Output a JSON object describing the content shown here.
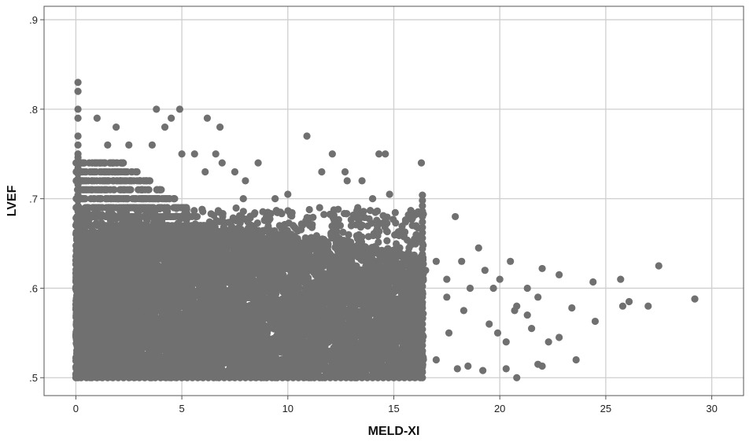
{
  "chart_data": {
    "type": "scatter",
    "title": "",
    "xlabel": "MELD-XI",
    "ylabel": "LVEF",
    "xlim": [
      -1.5,
      31.5
    ],
    "ylim": [
      0.48,
      0.915
    ],
    "x_ticks": [
      0,
      5,
      10,
      15,
      20,
      25,
      30
    ],
    "x_tick_labels": [
      "0",
      "5",
      "10",
      "15",
      "20",
      "25",
      "30"
    ],
    "y_ticks": [
      0.5,
      0.6,
      0.7,
      0.8,
      0.9
    ],
    "y_tick_labels": [
      ".5",
      ".6",
      ".7",
      ".8",
      ".9"
    ],
    "grid": true,
    "legend": "none",
    "marker_color": "#707070",
    "series": [
      {
        "dense_band": {
          "description_of_range": "dense cloud of points from x 0 to 16.4, y 0.50 to ~0.66",
          "x_range": [
            0,
            16.4
          ],
          "y_range": [
            0.5,
            0.665
          ]
        },
        "points": [
          [
            0.1,
            0.83
          ],
          [
            0.1,
            0.82
          ],
          [
            0.1,
            0.8
          ],
          [
            0.1,
            0.79
          ],
          [
            0.1,
            0.77
          ],
          [
            0.1,
            0.76
          ],
          [
            0.1,
            0.75
          ],
          [
            1.0,
            0.79
          ],
          [
            1.9,
            0.78
          ],
          [
            3.8,
            0.8
          ],
          [
            4.9,
            0.8
          ],
          [
            4.5,
            0.79
          ],
          [
            4.2,
            0.78
          ],
          [
            6.2,
            0.79
          ],
          [
            6.8,
            0.78
          ],
          [
            1.5,
            0.76
          ],
          [
            2.5,
            0.76
          ],
          [
            3.6,
            0.76
          ],
          [
            5.0,
            0.75
          ],
          [
            5.6,
            0.75
          ],
          [
            6.6,
            0.75
          ],
          [
            6.1,
            0.73
          ],
          [
            6.9,
            0.74
          ],
          [
            7.5,
            0.73
          ],
          [
            8.0,
            0.72
          ],
          [
            8.6,
            0.74
          ],
          [
            7.9,
            0.7
          ],
          [
            9.4,
            0.7
          ],
          [
            10.0,
            0.705
          ],
          [
            10.9,
            0.77
          ],
          [
            11.6,
            0.73
          ],
          [
            12.1,
            0.75
          ],
          [
            12.7,
            0.73
          ],
          [
            13.5,
            0.72
          ],
          [
            14.0,
            0.7
          ],
          [
            14.3,
            0.75
          ],
          [
            14.6,
            0.75
          ],
          [
            14.8,
            0.705
          ],
          [
            16.3,
            0.74
          ],
          [
            12.8,
            0.72
          ],
          [
            11.5,
            0.69
          ],
          [
            13.3,
            0.69
          ],
          [
            16.5,
            0.62
          ],
          [
            17.0,
            0.63
          ],
          [
            17.5,
            0.61
          ],
          [
            17.9,
            0.68
          ],
          [
            18.2,
            0.63
          ],
          [
            18.6,
            0.6
          ],
          [
            19.0,
            0.645
          ],
          [
            19.3,
            0.62
          ],
          [
            19.7,
            0.6
          ],
          [
            20.0,
            0.61
          ],
          [
            20.5,
            0.63
          ],
          [
            20.8,
            0.58
          ],
          [
            21.3,
            0.6
          ],
          [
            21.8,
            0.59
          ],
          [
            22.0,
            0.622
          ],
          [
            22.8,
            0.615
          ],
          [
            23.4,
            0.578
          ],
          [
            24.4,
            0.607
          ],
          [
            25.7,
            0.61
          ],
          [
            26.1,
            0.585
          ],
          [
            27.0,
            0.58
          ],
          [
            27.5,
            0.625
          ],
          [
            29.2,
            0.588
          ],
          [
            25.8,
            0.58
          ],
          [
            24.5,
            0.563
          ],
          [
            23.6,
            0.52
          ],
          [
            22.8,
            0.545
          ],
          [
            22.3,
            0.54
          ],
          [
            21.8,
            0.515
          ],
          [
            22.0,
            0.513
          ],
          [
            20.8,
            0.5
          ],
          [
            20.3,
            0.54
          ],
          [
            19.9,
            0.55
          ],
          [
            19.5,
            0.56
          ],
          [
            19.2,
            0.508
          ],
          [
            18.5,
            0.513
          ],
          [
            18.0,
            0.51
          ],
          [
            17.6,
            0.55
          ],
          [
            17.0,
            0.52
          ],
          [
            21.5,
            0.555
          ],
          [
            21.3,
            0.57
          ],
          [
            20.7,
            0.575
          ],
          [
            17.5,
            0.59
          ],
          [
            18.3,
            0.575
          ],
          [
            20.3,
            0.51
          ]
        ]
      }
    ]
  }
}
